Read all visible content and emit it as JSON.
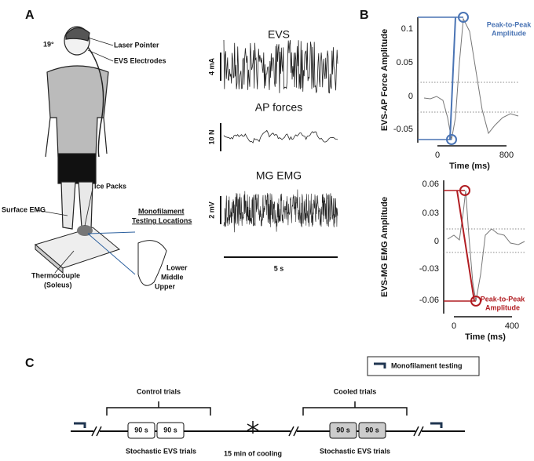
{
  "panels": {
    "A": {
      "label": "A",
      "annotations": {
        "laser": "Laser Pointer",
        "electrodes": "EVS Electrodes",
        "angle": "19°",
        "ice": "Ice Packs",
        "emg": "Surface EMG",
        "mono": [
          "Monofilament",
          "Testing Locations"
        ],
        "foot": [
          "Lower",
          "Middle",
          "Upper"
        ],
        "thermo": [
          "Thermocouple",
          "(Soleus)"
        ]
      },
      "traces": [
        {
          "title": "EVS",
          "scale": "4 mA"
        },
        {
          "title": "AP forces",
          "scale": "10 N"
        },
        {
          "title": "MG EMG",
          "scale": "2 mV"
        }
      ],
      "time_scale": "5 s"
    },
    "B": {
      "label": "B",
      "plots": [
        {
          "ylabel": "EVS-AP Force Amplitude",
          "xlabel": "Time (ms)",
          "yticks": [
            "0.1",
            "0.05",
            "0",
            "-0.05"
          ],
          "xticks": [
            "0",
            "800"
          ],
          "annotation": [
            "Peak-to-Peak",
            "Amplitude"
          ]
        },
        {
          "ylabel": "EVS-MG EMG Amplitude",
          "xlabel": "Time (ms)",
          "yticks": [
            "0.06",
            "0.03",
            "0",
            "-0.03",
            "-0.06"
          ],
          "xticks": [
            "0",
            "400"
          ],
          "annotation": [
            "Peak-to-Peak",
            "Amplitude"
          ]
        }
      ]
    },
    "C": {
      "label": "C",
      "legend": "Monofilament testing",
      "groups": [
        "Control trials",
        "Cooled trials"
      ],
      "blocks": [
        "90 s",
        "90 s",
        "90 s",
        "90 s"
      ],
      "labels": [
        "Stochastic EVS trials",
        "15 min of cooling",
        "Stochastic EVS trials"
      ]
    }
  }
}
